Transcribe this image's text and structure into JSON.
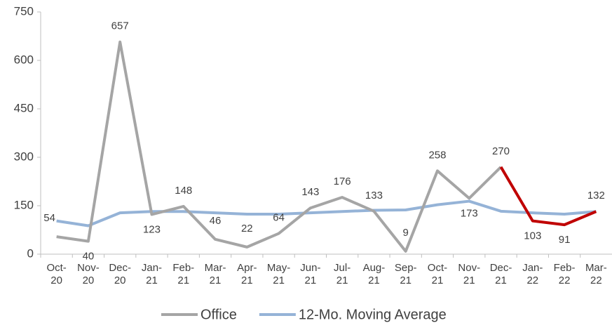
{
  "chart_data": {
    "type": "line",
    "categories": [
      "Oct-20",
      "Nov-20",
      "Dec-20",
      "Jan-21",
      "Feb-21",
      "Mar-21",
      "Apr-21",
      "May-21",
      "Jun-21",
      "Jul-21",
      "Aug-21",
      "Sep-21",
      "Oct-21",
      "Nov-21",
      "Dec-21",
      "Jan-22",
      "Feb-22",
      "Mar-22"
    ],
    "series": [
      {
        "name": "Office",
        "color": "#a5a5a5",
        "highlight_color": "#c00000",
        "highlight_from": "Dec-21",
        "values": [
          54,
          40,
          657,
          123,
          148,
          46,
          22,
          64,
          143,
          176,
          133,
          9,
          258,
          173,
          270,
          103,
          91,
          132
        ]
      },
      {
        "name": "12-Mo. Moving Average",
        "color": "#95b3d7",
        "values": [
          103,
          88,
          128,
          132,
          132,
          128,
          124,
          124,
          128,
          132,
          136,
          137,
          153,
          164,
          133,
          128,
          124,
          132
        ]
      }
    ],
    "ylim": [
      0,
      750
    ],
    "yticks": [
      0,
      150,
      300,
      450,
      600,
      750
    ],
    "grid": false
  }
}
